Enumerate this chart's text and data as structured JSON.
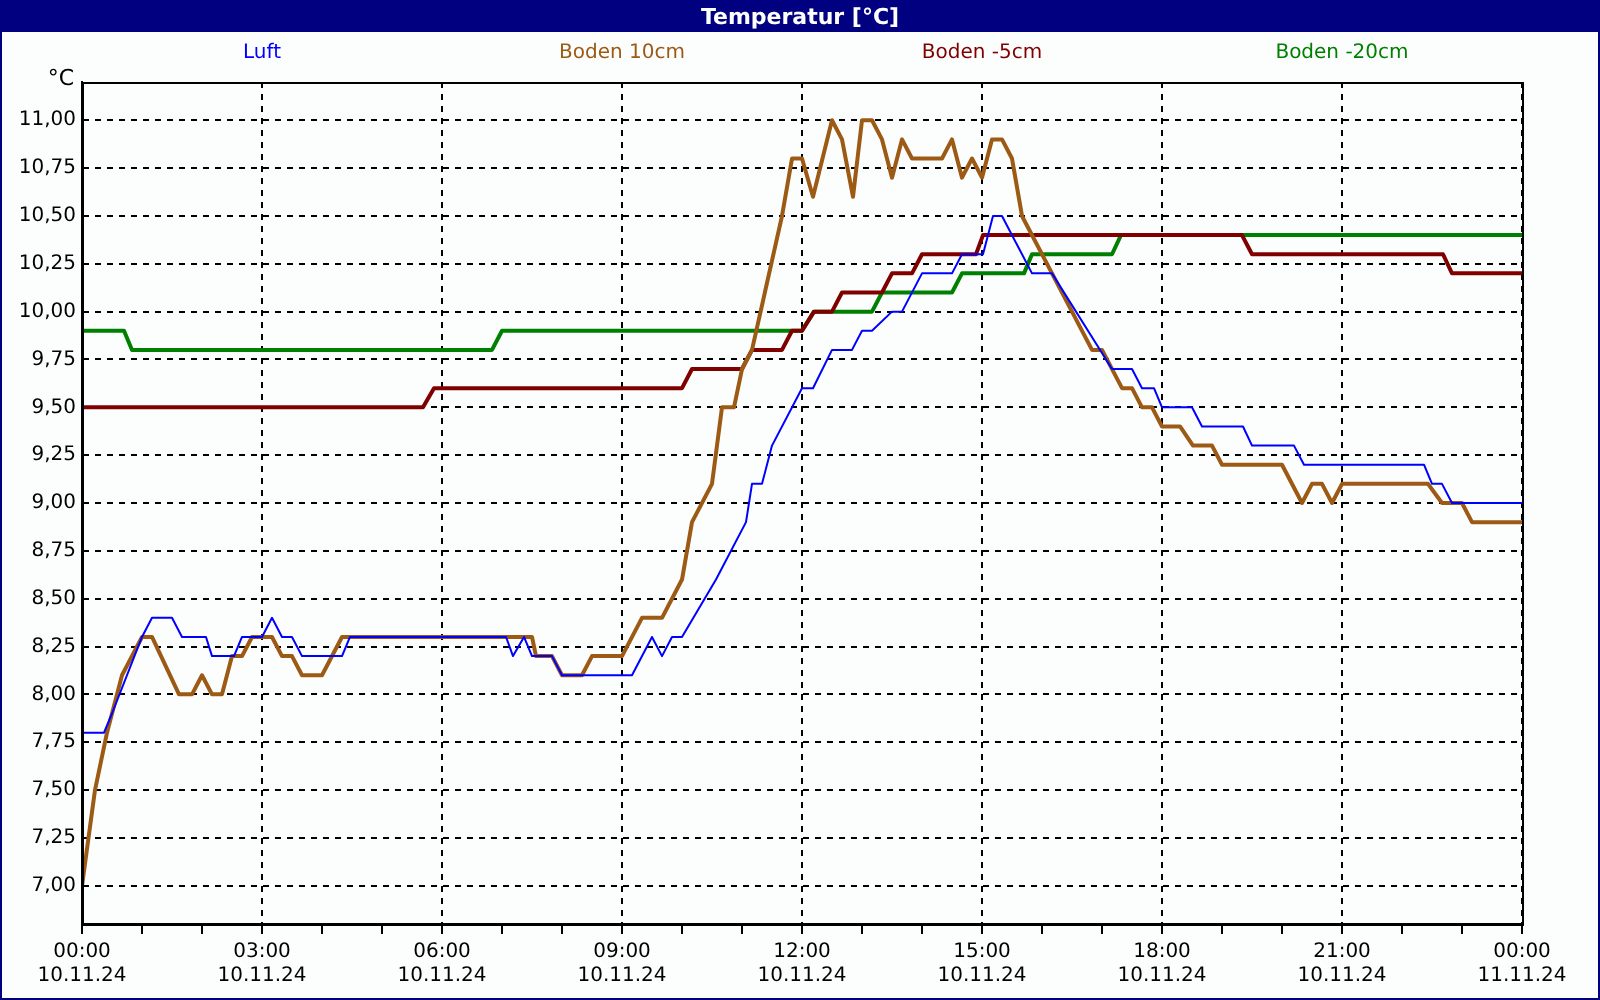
{
  "chart_data": {
    "type": "line",
    "title": "Temperatur [°C]",
    "ylabel": "°C",
    "legend": "top",
    "grid": true,
    "marker": "none",
    "line_style": "solid",
    "xlim": [
      "--11-10T00:00",
      "--11-11T00:00"
    ],
    "xticks": [
      {
        "value": "--11-10T00:00",
        "label": "00:00 10.11.24"
      },
      {
        "value": "--11-10T01:00",
        "label": null
      },
      {
        "value": "--11-10T02:00",
        "label": null
      },
      {
        "value": "--11-10T03:00",
        "label": "03:00 10.11.24"
      },
      {
        "value": "--11-10T04:00",
        "label": null
      },
      {
        "value": "--11-10T05:00",
        "label": null
      },
      {
        "value": "--11-10T06:00",
        "label": "06:00 10.11.24"
      },
      {
        "value": "--11-10T07:00",
        "label": null
      },
      {
        "value": "--11-10T08:00",
        "label": null
      },
      {
        "value": "--11-10T09:00",
        "label": "09:00 10.11.24"
      },
      {
        "value": "--11-10T10:00",
        "label": null
      },
      {
        "value": "--11-10T11:00",
        "label": null
      },
      {
        "value": "--11-10T12:00",
        "label": "12:00 10.11.24"
      },
      {
        "value": "--11-10T13:00",
        "label": null
      },
      {
        "value": "--11-10T14:00",
        "label": null
      },
      {
        "value": "--11-10T15:00",
        "label": "15:00 10.11.24"
      },
      {
        "value": "--11-10T16:00",
        "label": null
      },
      {
        "value": "--11-10T17:00",
        "label": null
      },
      {
        "value": "--11-10T18:00",
        "label": "18:00 10.11.24"
      },
      {
        "value": "--11-10T19:00",
        "label": null
      },
      {
        "value": "--11-10T20:00",
        "label": null
      },
      {
        "value": "--11-10T21:00",
        "label": "21:00 10.11.24"
      },
      {
        "value": "--11-10T22:00",
        "label": null
      },
      {
        "value": "--11-10T23:00",
        "label": null
      },
      {
        "value": "--11-11T00:00",
        "label": "00:00 11.11.24"
      }
    ],
    "ylim": [
      6.8,
      11.2
    ],
    "yticks": [
      {
        "value": 7,
        "label": "7,00"
      },
      {
        "value": 7.25,
        "label": "7,25"
      },
      {
        "value": 7.5,
        "label": "7,50"
      },
      {
        "value": 7.75,
        "label": "7,75"
      },
      {
        "value": 8,
        "label": "8,00"
      },
      {
        "value": 8.25,
        "label": "8,25"
      },
      {
        "value": 8.5,
        "label": "8,50"
      },
      {
        "value": 8.75,
        "label": "8,75"
      },
      {
        "value": 9,
        "label": "9,00"
      },
      {
        "value": 9.25,
        "label": "9,25"
      },
      {
        "value": 9.5,
        "label": "9,50"
      },
      {
        "value": 9.75,
        "label": "9,75"
      },
      {
        "value": 10,
        "label": "10,00"
      },
      {
        "value": 10.25,
        "label": "10,25"
      },
      {
        "value": 10.5,
        "label": "10,50"
      },
      {
        "value": 10.75,
        "label": "10,75"
      },
      {
        "value": 11,
        "label": "11,00"
      }
    ],
    "series": [
      {
        "name": "Luft",
        "color": "#0000ff",
        "x": [
          "--11-10T00:00",
          "--11-10T00:22",
          "--11-10T00:30",
          "--11-10T01:00",
          "--11-10T01:10",
          "--11-10T01:30",
          "--11-10T01:40",
          "--11-10T02:04",
          "--11-10T02:10",
          "--11-10T02:32",
          "--11-10T02:40",
          "--11-10T03:00",
          "--11-10T03:10",
          "--11-10T03:20",
          "--11-10T03:30",
          "--11-10T03:40",
          "--11-10T04:20",
          "--11-10T04:28",
          "--11-10T07:04",
          "--11-10T07:11",
          "--11-10T07:22",
          "--11-10T07:30",
          "--11-10T07:50",
          "--11-10T08:00",
          "--11-10T09:10",
          "--11-10T09:30",
          "--11-10T09:40",
          "--11-10T09:50",
          "--11-10T10:00",
          "--11-10T10:34",
          "--11-10T11:04",
          "--11-10T11:10",
          "--11-10T11:20",
          "--11-10T11:30",
          "--11-10T12:00",
          "--11-10T12:11",
          "--11-10T12:30",
          "--11-10T12:50",
          "--11-10T13:00",
          "--11-10T13:10",
          "--11-10T13:30",
          "--11-10T13:40",
          "--11-10T14:00",
          "--11-10T14:30",
          "--11-10T14:40",
          "--11-10T15:01",
          "--11-10T15:11",
          "--11-10T15:20",
          "--11-10T15:50",
          "--11-10T16:10",
          "--11-10T17:10",
          "--11-10T17:30",
          "--11-10T17:40",
          "--11-10T17:52",
          "--11-10T18:00",
          "--11-10T18:30",
          "--11-10T18:40",
          "--11-10T19:21",
          "--11-10T19:30",
          "--11-10T20:12",
          "--11-10T20:22",
          "--11-10T22:22",
          "--11-10T22:30",
          "--11-10T22:40",
          "--11-10T22:50",
          "--11-11T00:00"
        ],
        "values": [
          7.8,
          7.8,
          7.9,
          8.3,
          8.4,
          8.4,
          8.3,
          8.3,
          8.2,
          8.2,
          8.3,
          8.3,
          8.4,
          8.3,
          8.3,
          8.2,
          8.2,
          8.3,
          8.3,
          8.2,
          8.3,
          8.2,
          8.2,
          8.1,
          8.1,
          8.3,
          8.2,
          8.3,
          8.3,
          8.6,
          8.9,
          9.1,
          9.1,
          9.3,
          9.6,
          9.6,
          9.8,
          9.8,
          9.9,
          9.9,
          10.0,
          10.0,
          10.2,
          10.2,
          10.3,
          10.3,
          10.5,
          10.5,
          10.2,
          10.2,
          9.7,
          9.7,
          9.6,
          9.6,
          9.5,
          9.5,
          9.4,
          9.4,
          9.3,
          9.3,
          9.2,
          9.2,
          9.1,
          9.1,
          9.0,
          9.0
        ]
      },
      {
        "name": "Boden 10cm",
        "color": "#9c5a14",
        "x": [
          "--11-10T00:00",
          "--11-10T00:13",
          "--11-10T00:25",
          "--11-10T00:40",
          "--11-10T01:00",
          "--11-10T01:10",
          "--11-10T01:37",
          "--11-10T01:50",
          "--11-10T02:00",
          "--11-10T02:10",
          "--11-10T02:20",
          "--11-10T02:30",
          "--11-10T02:40",
          "--11-10T02:50",
          "--11-10T03:10",
          "--11-10T03:20",
          "--11-10T03:30",
          "--11-10T03:40",
          "--11-10T04:00",
          "--11-10T04:20",
          "--11-10T07:30",
          "--11-10T07:34",
          "--11-10T07:50",
          "--11-10T08:00",
          "--11-10T08:20",
          "--11-10T08:30",
          "--11-10T09:00",
          "--11-10T09:20",
          "--11-10T09:40",
          "--11-10T10:00",
          "--11-10T10:10",
          "--11-10T10:30",
          "--11-10T10:40",
          "--11-10T10:52",
          "--11-10T11:00",
          "--11-10T11:10",
          "--11-10T11:40",
          "--11-10T11:50",
          "--11-10T12:00",
          "--11-10T12:11",
          "--11-10T12:30",
          "--11-10T12:40",
          "--11-10T12:51",
          "--11-10T13:00",
          "--11-10T13:10",
          "--11-10T13:20",
          "--11-10T13:30",
          "--11-10T13:40",
          "--11-10T13:50",
          "--11-10T14:20",
          "--11-10T14:30",
          "--11-10T14:40",
          "--11-10T14:50",
          "--11-10T15:00",
          "--11-10T15:10",
          "--11-10T15:20",
          "--11-10T15:30",
          "--11-10T15:40",
          "--11-10T16:50",
          "--11-10T17:00",
          "--11-10T17:20",
          "--11-10T17:30",
          "--11-10T17:40",
          "--11-10T17:50",
          "--11-10T18:00",
          "--11-10T18:18",
          "--11-10T18:31",
          "--11-10T18:50",
          "--11-10T19:00",
          "--11-10T20:00",
          "--11-10T20:20",
          "--11-10T20:30",
          "--11-10T20:40",
          "--11-10T20:50",
          "--11-10T21:00",
          "--11-10T22:26",
          "--11-10T22:40",
          "--11-10T23:00",
          "--11-10T23:10",
          "--11-11T00:00"
        ],
        "values": [
          7.0,
          7.5,
          7.8,
          8.1,
          8.3,
          8.3,
          8.0,
          8.0,
          8.1,
          8.0,
          8.0,
          8.2,
          8.2,
          8.3,
          8.3,
          8.2,
          8.2,
          8.1,
          8.1,
          8.3,
          8.3,
          8.2,
          8.2,
          8.1,
          8.1,
          8.2,
          8.2,
          8.4,
          8.4,
          8.6,
          8.9,
          9.1,
          9.5,
          9.5,
          9.7,
          9.8,
          10.5,
          10.8,
          10.8,
          10.6,
          11.0,
          10.9,
          10.6,
          11.0,
          11.0,
          10.9,
          10.7,
          10.9,
          10.8,
          10.8,
          10.9,
          10.7,
          10.8,
          10.7,
          10.9,
          10.9,
          10.8,
          10.5,
          9.8,
          9.8,
          9.6,
          9.6,
          9.5,
          9.5,
          9.4,
          9.4,
          9.3,
          9.3,
          9.2,
          9.2,
          9.0,
          9.1,
          9.1,
          9.0,
          9.1,
          9.1,
          9.0,
          9.0,
          8.9,
          8.9
        ]
      },
      {
        "name": "Boden -5cm",
        "color": "#800000",
        "x": [
          "--11-10T00:00",
          "--11-10T05:41",
          "--11-10T05:52",
          "--11-10T10:00",
          "--11-10T10:10",
          "--11-10T11:00",
          "--11-10T11:10",
          "--11-10T11:40",
          "--11-10T11:50",
          "--11-10T12:00",
          "--11-10T12:12",
          "--11-10T12:30",
          "--11-10T12:40",
          "--11-10T13:20",
          "--11-10T13:30",
          "--11-10T13:50",
          "--11-10T14:00",
          "--11-10T14:54",
          "--11-10T15:01",
          "--11-10T19:20",
          "--11-10T19:30",
          "--11-10T22:41",
          "--11-10T22:50",
          "--11-11T00:00"
        ],
        "values": [
          9.5,
          9.5,
          9.6,
          9.6,
          9.7,
          9.7,
          9.8,
          9.8,
          9.9,
          9.9,
          10.0,
          10.0,
          10.1,
          10.1,
          10.2,
          10.2,
          10.3,
          10.3,
          10.4,
          10.4,
          10.3,
          10.3,
          10.2,
          10.2
        ]
      },
      {
        "name": "Boden -20cm",
        "color": "#008000",
        "x": [
          "--11-10T00:00",
          "--11-10T00:42",
          "--11-10T00:50",
          "--11-10T06:50",
          "--11-10T07:00",
          "--11-10T12:00",
          "--11-10T12:12",
          "--11-10T13:10",
          "--11-10T13:20",
          "--11-10T14:30",
          "--11-10T14:40",
          "--11-10T15:42",
          "--11-10T15:50",
          "--11-10T17:10",
          "--11-10T17:19",
          "--11-11T00:00"
        ],
        "values": [
          9.9,
          9.9,
          9.8,
          9.8,
          9.9,
          9.9,
          10.0,
          10.0,
          10.1,
          10.1,
          10.2,
          10.2,
          10.3,
          10.3,
          10.4,
          10.4
        ]
      }
    ]
  }
}
